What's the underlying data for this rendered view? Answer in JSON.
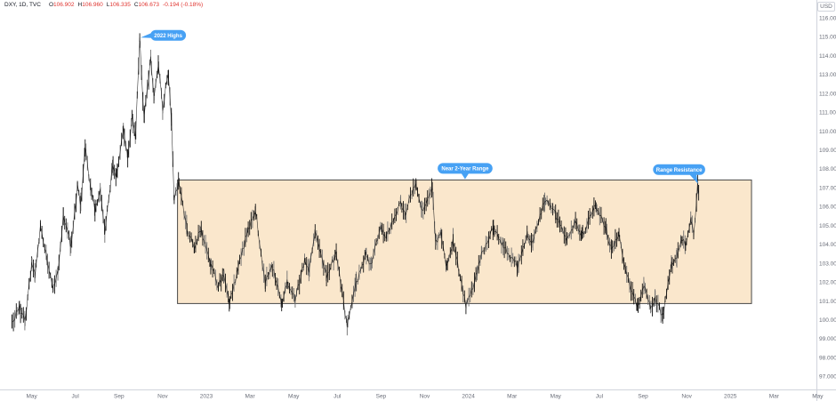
{
  "ticker": {
    "symbol": "DXY, 1D, TVC",
    "ohlc": [
      {
        "label": "O",
        "value": "106.902"
      },
      {
        "label": "H",
        "value": "106.960"
      },
      {
        "label": "L",
        "value": "106.335"
      },
      {
        "label": "C",
        "value": "106.673"
      }
    ],
    "change": "-0.194 (-0.18%)"
  },
  "axis": {
    "currency": "USD",
    "price_ticks": [
      "116.000",
      "115.000",
      "114.000",
      "113.000",
      "112.000",
      "111.000",
      "110.000",
      "109.000",
      "108.000",
      "107.000",
      "106.000",
      "105.000",
      "104.000",
      "103.000",
      "102.000",
      "101.000",
      "100.000",
      "99.000",
      "98.000",
      "97.000"
    ],
    "time_ticks": [
      {
        "label": "May",
        "m": 1
      },
      {
        "label": "Jul",
        "m": 3
      },
      {
        "label": "Sep",
        "m": 5
      },
      {
        "label": "Nov",
        "m": 7
      },
      {
        "label": "2023",
        "m": 9
      },
      {
        "label": "Mar",
        "m": 11
      },
      {
        "label": "May",
        "m": 13
      },
      {
        "label": "Jul",
        "m": 15
      },
      {
        "label": "Sep",
        "m": 17
      },
      {
        "label": "Nov",
        "m": 19
      },
      {
        "label": "2024",
        "m": 21
      },
      {
        "label": "Mar",
        "m": 23
      },
      {
        "label": "May",
        "m": 25
      },
      {
        "label": "Jul",
        "m": 27
      },
      {
        "label": "Sep",
        "m": 29
      },
      {
        "label": "Nov",
        "m": 31
      },
      {
        "label": "2025",
        "m": 33
      },
      {
        "label": "Mar",
        "m": 35
      },
      {
        "label": "May",
        "m": 37
      }
    ]
  },
  "chart_data": {
    "type": "candlestick",
    "title": "DXY, 1D, TVC",
    "symbol": "DXY",
    "interval": "1D",
    "exchange": "TVC",
    "ylabel": "USD",
    "ylim": [
      96.3,
      116.94
    ],
    "grid": false,
    "legend_position": "top-left",
    "time_note": "m = months since 2022-04-01 (Jan 2023 = 9); prices in USD index points",
    "swings": [
      [
        0.1,
        99.9
      ],
      [
        0.45,
        100.6
      ],
      [
        0.7,
        99.9
      ],
      [
        1.0,
        103.0
      ],
      [
        1.15,
        102.3
      ],
      [
        1.4,
        105.0
      ],
      [
        1.7,
        103.2
      ],
      [
        1.97,
        101.7
      ],
      [
        2.2,
        102.6
      ],
      [
        2.45,
        105.5
      ],
      [
        2.8,
        103.9
      ],
      [
        3.1,
        107.0
      ],
      [
        3.25,
        106.1
      ],
      [
        3.45,
        109.2
      ],
      [
        3.7,
        106.9
      ],
      [
        3.9,
        105.8
      ],
      [
        4.15,
        106.8
      ],
      [
        4.35,
        104.7
      ],
      [
        4.7,
        108.1
      ],
      [
        4.9,
        107.6
      ],
      [
        5.2,
        110.2
      ],
      [
        5.4,
        108.5
      ],
      [
        5.6,
        110.8
      ],
      [
        5.75,
        109.6
      ],
      [
        5.95,
        114.78
      ],
      [
        6.15,
        110.6
      ],
      [
        6.45,
        113.9
      ],
      [
        6.6,
        111.9
      ],
      [
        6.8,
        113.5
      ],
      [
        7.0,
        111.2
      ],
      [
        7.25,
        113.1
      ],
      [
        7.4,
        110.6
      ],
      [
        7.52,
        106.4
      ],
      [
        7.75,
        107.3
      ],
      [
        8.1,
        104.9
      ],
      [
        8.45,
        103.8
      ],
      [
        8.75,
        104.8
      ],
      [
        9.2,
        102.9
      ],
      [
        9.55,
        101.8
      ],
      [
        9.8,
        102.4
      ],
      [
        10.05,
        100.9
      ],
      [
        10.9,
        104.7
      ],
      [
        11.25,
        105.8
      ],
      [
        11.7,
        101.9
      ],
      [
        12.0,
        102.9
      ],
      [
        12.45,
        100.8
      ],
      [
        12.7,
        102.0
      ],
      [
        13.05,
        101.0
      ],
      [
        13.5,
        103.1
      ],
      [
        13.7,
        102.5
      ],
      [
        13.97,
        104.6
      ],
      [
        14.5,
        102.3
      ],
      [
        14.95,
        103.5
      ],
      [
        15.45,
        99.6
      ],
      [
        15.85,
        101.8
      ],
      [
        16.3,
        103.5
      ],
      [
        16.55,
        102.9
      ],
      [
        17.0,
        104.9
      ],
      [
        17.25,
        104.4
      ],
      [
        17.9,
        106.2
      ],
      [
        18.1,
        105.6
      ],
      [
        18.6,
        107.34
      ],
      [
        18.85,
        105.7
      ],
      [
        19.35,
        106.9
      ],
      [
        19.5,
        104.1
      ],
      [
        19.75,
        104.5
      ],
      [
        20.0,
        102.8
      ],
      [
        20.3,
        104.2
      ],
      [
        20.9,
        100.7
      ],
      [
        21.4,
        102.4
      ],
      [
        21.6,
        103.4
      ],
      [
        22.15,
        104.9
      ],
      [
        22.6,
        103.9
      ],
      [
        23.25,
        102.8
      ],
      [
        23.7,
        104.5
      ],
      [
        23.95,
        104.1
      ],
      [
        24.5,
        106.4
      ],
      [
        25.0,
        105.6
      ],
      [
        25.5,
        104.2
      ],
      [
        25.9,
        105.1
      ],
      [
        26.2,
        104.4
      ],
      [
        26.85,
        106.1
      ],
      [
        27.3,
        104.9
      ],
      [
        27.55,
        103.7
      ],
      [
        27.9,
        104.6
      ],
      [
        28.2,
        102.5
      ],
      [
        28.75,
        100.68
      ],
      [
        29.05,
        101.7
      ],
      [
        29.35,
        100.6
      ],
      [
        29.55,
        101.2
      ],
      [
        29.9,
        100.18
      ],
      [
        30.3,
        102.9
      ],
      [
        30.55,
        103.3
      ],
      [
        30.75,
        104.3
      ],
      [
        30.95,
        104.0
      ],
      [
        31.2,
        105.4
      ],
      [
        31.32,
        104.4
      ],
      [
        31.5,
        107.06
      ],
      [
        31.55,
        106.67
      ]
    ],
    "range_box": {
      "m_start": 7.68,
      "m_end": 33.97,
      "price_low": 100.85,
      "price_high": 107.4
    },
    "callouts": [
      {
        "text": "2022 Highs",
        "m": 5.95,
        "price": 114.9,
        "side": "right"
      },
      {
        "text": "Near 2-Year Range",
        "m": 20.85,
        "price": 107.4,
        "side": "top"
      },
      {
        "text": "Range Resistance",
        "m": 31.52,
        "price": 107.15,
        "side": "top-left"
      }
    ]
  },
  "colors": {
    "background": "#ffffff",
    "axis_text": "#696d78",
    "axis_line": "#d1d4dc",
    "legend_text": "#131722",
    "down_red": "#e0342f",
    "bar_dark": "#121212",
    "bar_light": "#6e6e6e",
    "box_fill": "#fae7cc",
    "box_border": "#474747",
    "callout_fill": "#47a1f4",
    "callout_text": "#ffffff"
  }
}
